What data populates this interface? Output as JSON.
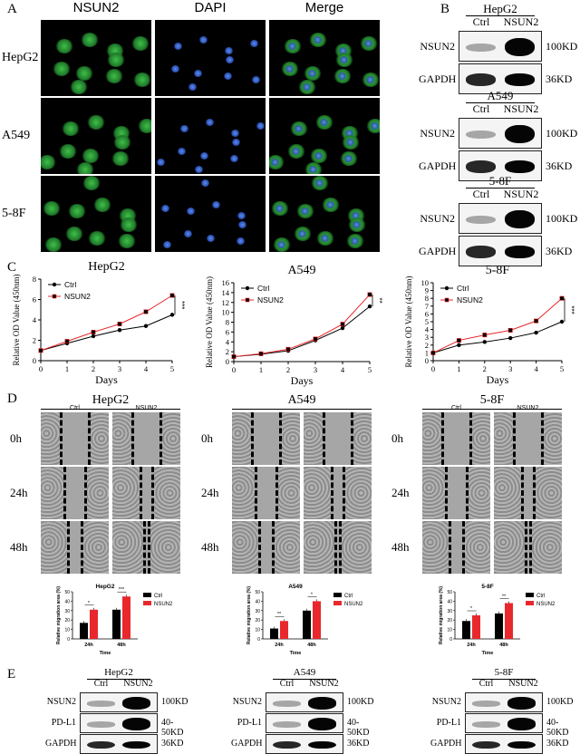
{
  "panels": {
    "A": "A",
    "B": "B",
    "C": "C",
    "D": "D",
    "E": "E"
  },
  "panelA": {
    "columns": [
      "NSUN2",
      "DAPI",
      "Merge"
    ],
    "rows": [
      "HepG2",
      "A549",
      "5-8F"
    ]
  },
  "panelB": {
    "blots": [
      {
        "cell": "HepG2",
        "ctrl": "Ctrl",
        "nsun2": "NSUN2",
        "rows": [
          {
            "name": "NSUN2",
            "size": "100KD"
          },
          {
            "name": "GAPDH",
            "size": "36KD"
          }
        ]
      },
      {
        "cell": "A549",
        "ctrl": "Ctrl",
        "nsun2": "NSUN2",
        "rows": [
          {
            "name": "NSUN2",
            "size": "100KD"
          },
          {
            "name": "GAPDH",
            "size": "36KD"
          }
        ]
      },
      {
        "cell": "5-8F",
        "ctrl": "Ctrl",
        "nsun2": "NSUN2",
        "rows": [
          {
            "name": "NSUN2",
            "size": "100KD"
          },
          {
            "name": "GAPDH",
            "size": "36KD"
          }
        ]
      }
    ]
  },
  "panelD": {
    "groups": [
      {
        "cell": "HepG2",
        "ctrl": "Ctrl",
        "nsun2": "NSUN2"
      },
      {
        "cell": "A549",
        "ctrl": "",
        "nsun2": ""
      },
      {
        "cell": "5-8F",
        "ctrl": "Ctrl",
        "nsun2": "NSUN2"
      }
    ],
    "times": [
      "0h",
      "24h",
      "48h"
    ]
  },
  "panelE": {
    "blots": [
      {
        "cell": "HepG2",
        "ctrl": "Ctrl",
        "nsun2": "NSUN2",
        "rows": [
          {
            "name": "NSUN2",
            "size": "100KD"
          },
          {
            "name": "PD-L1",
            "size": "40-50KD"
          },
          {
            "name": "GAPDH",
            "size": "36KD"
          }
        ]
      },
      {
        "cell": "A549",
        "ctrl": "Ctrl",
        "nsun2": "NSUN2",
        "rows": [
          {
            "name": "NSUN2",
            "size": "100KD"
          },
          {
            "name": "PD-L1",
            "size": "40-50KD"
          },
          {
            "name": "GAPDH",
            "size": "36KD"
          }
        ]
      },
      {
        "cell": "5-8F",
        "ctrl": "Ctrl",
        "nsun2": "NSUN2",
        "rows": [
          {
            "name": "NSUN2",
            "size": "100KD"
          },
          {
            "name": "PD-L1",
            "size": "40-50KD"
          },
          {
            "name": "GAPDH",
            "size": "36KD"
          }
        ]
      }
    ]
  },
  "colors": {
    "ctrl": "#000000",
    "nsun2": "#e8282c",
    "green": "#2e9e3a",
    "blue": "#2a5fd0"
  },
  "chart_data": [
    {
      "type": "line",
      "title": "HepG2",
      "xlabel": "Days",
      "ylabel": "Relative OD Value (450nm)",
      "xlim": [
        0,
        5
      ],
      "ylim": [
        0,
        8
      ],
      "yticks": [
        0,
        2,
        4,
        6,
        8
      ],
      "legend": "top-left",
      "annotation": "***",
      "x": [
        0,
        1,
        2,
        3,
        4,
        5
      ],
      "series": [
        {
          "name": "Ctrl",
          "values": [
            1.0,
            1.7,
            2.4,
            3.0,
            3.4,
            4.5
          ]
        },
        {
          "name": "NSUN2",
          "values": [
            1.0,
            1.9,
            2.8,
            3.6,
            4.8,
            6.4
          ]
        }
      ]
    },
    {
      "type": "line",
      "title": "A549",
      "xlabel": "Days",
      "ylabel": "Relative OD Value (450nm)",
      "xlim": [
        0,
        5
      ],
      "ylim": [
        0,
        16
      ],
      "yticks": [
        0,
        2,
        4,
        6,
        8,
        10,
        12,
        14,
        16
      ],
      "legend": "top-left",
      "annotation": "**",
      "x": [
        0,
        1,
        2,
        3,
        4,
        5
      ],
      "series": [
        {
          "name": "Ctrl",
          "values": [
            1.0,
            1.5,
            2.2,
            4.3,
            6.8,
            11.2
          ]
        },
        {
          "name": "NSUN2",
          "values": [
            1.0,
            1.6,
            2.5,
            4.6,
            7.6,
            13.6
          ]
        }
      ]
    },
    {
      "type": "line",
      "title": "5-8F",
      "xlabel": "Days",
      "ylabel": "Relative OD Value (450nm)",
      "xlim": [
        0,
        5
      ],
      "ylim": [
        0,
        10
      ],
      "yticks": [
        0,
        1,
        2,
        3,
        4,
        5,
        6,
        7,
        8,
        9,
        10
      ],
      "legend": "top-left",
      "annotation": "***",
      "x": [
        0,
        1,
        2,
        3,
        4,
        5
      ],
      "series": [
        {
          "name": "Ctrl",
          "values": [
            1.0,
            2.0,
            2.4,
            2.9,
            3.6,
            5.0
          ]
        },
        {
          "name": "NSUN2",
          "values": [
            1.0,
            2.6,
            3.3,
            3.9,
            5.1,
            8.0
          ]
        }
      ]
    },
    {
      "type": "bar",
      "title": "HepG2",
      "xlabel": "Time",
      "ylabel": "Relative migration area (%)",
      "ylim": [
        0,
        50
      ],
      "yticks": [
        0,
        10,
        20,
        30,
        40,
        50
      ],
      "legend": "top-right",
      "categories": [
        "24h",
        "48h"
      ],
      "series": [
        {
          "name": "Ctrl",
          "values": [
            17,
            31
          ]
        },
        {
          "name": "NSUN2",
          "values": [
            31,
            45
          ]
        }
      ],
      "annotations": [
        "*",
        "***"
      ]
    },
    {
      "type": "bar",
      "title": "A549",
      "xlabel": "Time",
      "ylabel": "Relative migration area (%)",
      "ylim": [
        0,
        50
      ],
      "yticks": [
        0,
        10,
        20,
        30,
        40,
        50
      ],
      "legend": "top-right",
      "categories": [
        "24h",
        "48h"
      ],
      "series": [
        {
          "name": "Ctrl",
          "values": [
            11,
            30
          ]
        },
        {
          "name": "NSUN2",
          "values": [
            19,
            40
          ]
        }
      ],
      "annotations": [
        "**",
        "*"
      ]
    },
    {
      "type": "bar",
      "title": "5-8F",
      "xlabel": "Time",
      "ylabel": "Relative migration area (%)",
      "ylim": [
        0,
        50
      ],
      "yticks": [
        0,
        10,
        20,
        30,
        40,
        50
      ],
      "legend": "top-right",
      "categories": [
        "24h",
        "48h"
      ],
      "series": [
        {
          "name": "Ctrl",
          "values": [
            19,
            27
          ]
        },
        {
          "name": "NSUN2",
          "values": [
            25,
            38
          ]
        }
      ],
      "annotations": [
        "*",
        "**"
      ]
    }
  ]
}
